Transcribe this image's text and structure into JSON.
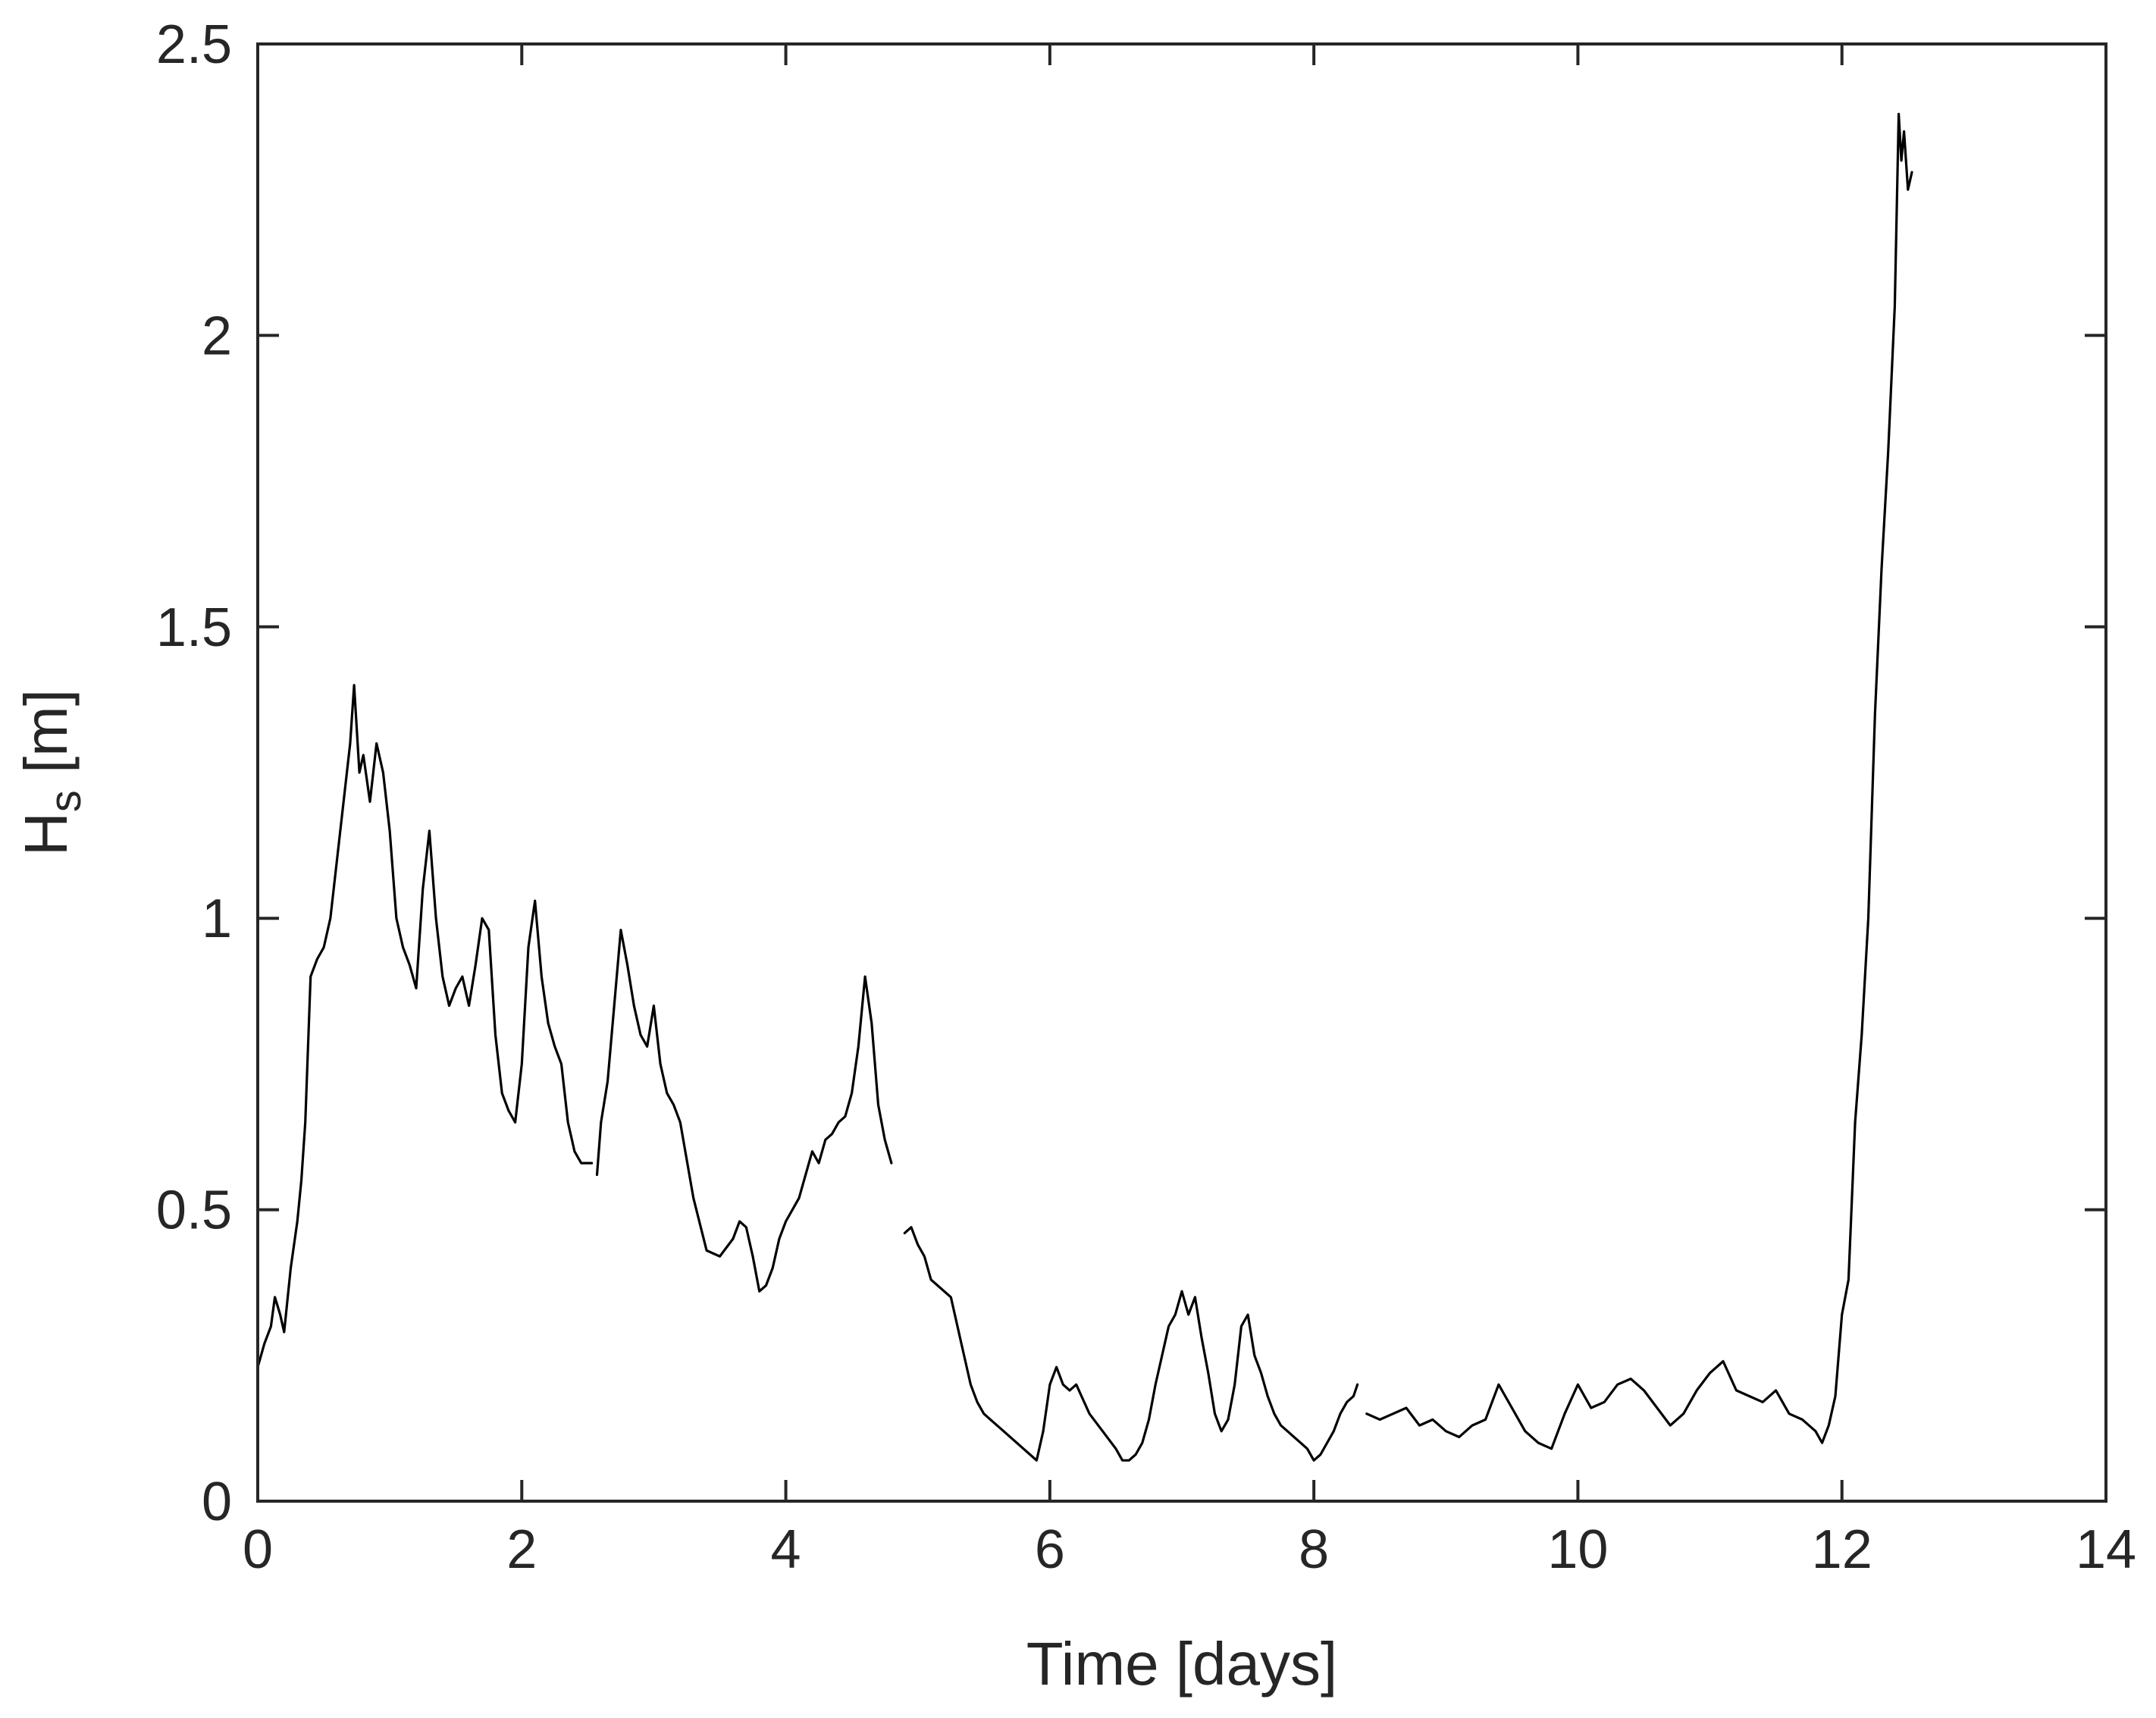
{
  "chart_data": {
    "type": "line",
    "title": "",
    "xlabel": "Time [days]",
    "ylabel": {
      "main": "H",
      "sub": "s",
      "unit": " [m]"
    },
    "xlim": [
      0,
      14
    ],
    "ylim": [
      0,
      2.5
    ],
    "xticks": [
      0,
      2,
      4,
      6,
      8,
      10,
      12,
      14
    ],
    "xtick_labels": [
      "0",
      "2",
      "4",
      "6",
      "8",
      "10",
      "12",
      "14"
    ],
    "yticks": [
      0,
      0.5,
      1,
      1.5,
      2,
      2.5
    ],
    "ytick_labels": [
      "0",
      "0.5",
      "1",
      "1.5",
      "2",
      "2.5"
    ],
    "grid": false,
    "legend": "none",
    "line_color": "#000000",
    "segments": [
      {
        "x": [
          0,
          0.05,
          0.1,
          0.13,
          0.17,
          0.2,
          0.25,
          0.3,
          0.33,
          0.36,
          0.4,
          0.45,
          0.5,
          0.55,
          0.6,
          0.65,
          0.7,
          0.73,
          0.77,
          0.8,
          0.85,
          0.9,
          0.95,
          1.0,
          1.05,
          1.1,
          1.15,
          1.2,
          1.25,
          1.3,
          1.35,
          1.4,
          1.45,
          1.5,
          1.55,
          1.6,
          1.65,
          1.7,
          1.75,
          1.8,
          1.85,
          1.9,
          1.95,
          2.0,
          2.05,
          2.1,
          2.15,
          2.2,
          2.25,
          2.3,
          2.35,
          2.4,
          2.45,
          2.5,
          2.53
        ],
        "y": [
          0.23,
          0.27,
          0.3,
          0.35,
          0.32,
          0.29,
          0.4,
          0.48,
          0.55,
          0.65,
          0.9,
          0.93,
          0.95,
          1.0,
          1.1,
          1.2,
          1.3,
          1.4,
          1.25,
          1.28,
          1.2,
          1.3,
          1.25,
          1.15,
          1.0,
          0.95,
          0.92,
          0.88,
          1.05,
          1.15,
          1.0,
          0.9,
          0.85,
          0.88,
          0.9,
          0.85,
          0.92,
          1.0,
          0.98,
          0.8,
          0.7,
          0.67,
          0.65,
          0.75,
          0.95,
          1.03,
          0.9,
          0.82,
          0.78,
          0.75,
          0.65,
          0.6,
          0.58,
          0.58,
          0.58
        ]
      },
      {
        "x": [
          2.57,
          2.6,
          2.65,
          2.7,
          2.75,
          2.8,
          2.85,
          2.9,
          2.95,
          3.0,
          3.05,
          3.1,
          3.15,
          3.2,
          3.3,
          3.4,
          3.5,
          3.6,
          3.65,
          3.7,
          3.75,
          3.8,
          3.85,
          3.9,
          3.95,
          4.0,
          4.1,
          4.2,
          4.25,
          4.3,
          4.35,
          4.4,
          4.45,
          4.5,
          4.55,
          4.6,
          4.65,
          4.7,
          4.75,
          4.8
        ],
        "y": [
          0.56,
          0.65,
          0.72,
          0.85,
          0.98,
          0.92,
          0.85,
          0.8,
          0.78,
          0.85,
          0.75,
          0.7,
          0.68,
          0.65,
          0.52,
          0.43,
          0.42,
          0.45,
          0.48,
          0.47,
          0.42,
          0.36,
          0.37,
          0.4,
          0.45,
          0.48,
          0.52,
          0.6,
          0.58,
          0.62,
          0.63,
          0.65,
          0.66,
          0.7,
          0.78,
          0.9,
          0.82,
          0.68,
          0.62,
          0.58
        ]
      },
      {
        "x": [
          4.9,
          4.95,
          5.0,
          5.05,
          5.1,
          5.15,
          5.2,
          5.25,
          5.3,
          5.35,
          5.4,
          5.45,
          5.5,
          5.55,
          5.6,
          5.65,
          5.7,
          5.75,
          5.8,
          5.85,
          5.9,
          5.95,
          6.0,
          6.05,
          6.1,
          6.15,
          6.2,
          6.3,
          6.4,
          6.5,
          6.55,
          6.6,
          6.65,
          6.7,
          6.75,
          6.8,
          6.85,
          6.9,
          6.95,
          7.0,
          7.05,
          7.1,
          7.15,
          7.2,
          7.25,
          7.3,
          7.35,
          7.4,
          7.45,
          7.5,
          7.55,
          7.6,
          7.65,
          7.7,
          7.75,
          7.8,
          7.85,
          7.9,
          7.95,
          8.0,
          8.05,
          8.1,
          8.15,
          8.2,
          8.25,
          8.3,
          8.33
        ],
        "y": [
          0.46,
          0.47,
          0.44,
          0.42,
          0.38,
          0.37,
          0.36,
          0.35,
          0.3,
          0.25,
          0.2,
          0.17,
          0.15,
          0.14,
          0.13,
          0.12,
          0.11,
          0.1,
          0.09,
          0.08,
          0.07,
          0.12,
          0.2,
          0.23,
          0.2,
          0.19,
          0.2,
          0.15,
          0.12,
          0.09,
          0.07,
          0.07,
          0.08,
          0.1,
          0.14,
          0.2,
          0.25,
          0.3,
          0.32,
          0.36,
          0.32,
          0.35,
          0.28,
          0.22,
          0.15,
          0.12,
          0.14,
          0.2,
          0.3,
          0.32,
          0.25,
          0.22,
          0.18,
          0.15,
          0.13,
          0.12,
          0.11,
          0.1,
          0.09,
          0.07,
          0.08,
          0.1,
          0.12,
          0.15,
          0.17,
          0.18,
          0.2
        ]
      },
      {
        "x": [
          8.4,
          8.5,
          8.6,
          8.7,
          8.8,
          8.9,
          9.0,
          9.1,
          9.2,
          9.3,
          9.4,
          9.5,
          9.6,
          9.7,
          9.8,
          9.9,
          10.0,
          10.1,
          10.2,
          10.3,
          10.4,
          10.5,
          10.6,
          10.7,
          10.8,
          10.9,
          11.0,
          11.1,
          11.2,
          11.3,
          11.4,
          11.5,
          11.6,
          11.7,
          11.8,
          11.85,
          11.9,
          11.95,
          12.0,
          12.05,
          12.1,
          12.15,
          12.2,
          12.25,
          12.3,
          12.35,
          12.4,
          12.43,
          12.45,
          12.47,
          12.5,
          12.53
        ],
        "y": [
          0.15,
          0.14,
          0.15,
          0.16,
          0.13,
          0.14,
          0.12,
          0.11,
          0.13,
          0.14,
          0.2,
          0.16,
          0.12,
          0.1,
          0.09,
          0.15,
          0.2,
          0.16,
          0.17,
          0.2,
          0.21,
          0.19,
          0.16,
          0.13,
          0.15,
          0.19,
          0.22,
          0.24,
          0.19,
          0.18,
          0.17,
          0.19,
          0.15,
          0.14,
          0.12,
          0.1,
          0.13,
          0.18,
          0.32,
          0.38,
          0.65,
          0.8,
          1.0,
          1.35,
          1.6,
          1.8,
          2.05,
          2.38,
          2.3,
          2.35,
          2.25,
          2.28
        ]
      }
    ]
  }
}
